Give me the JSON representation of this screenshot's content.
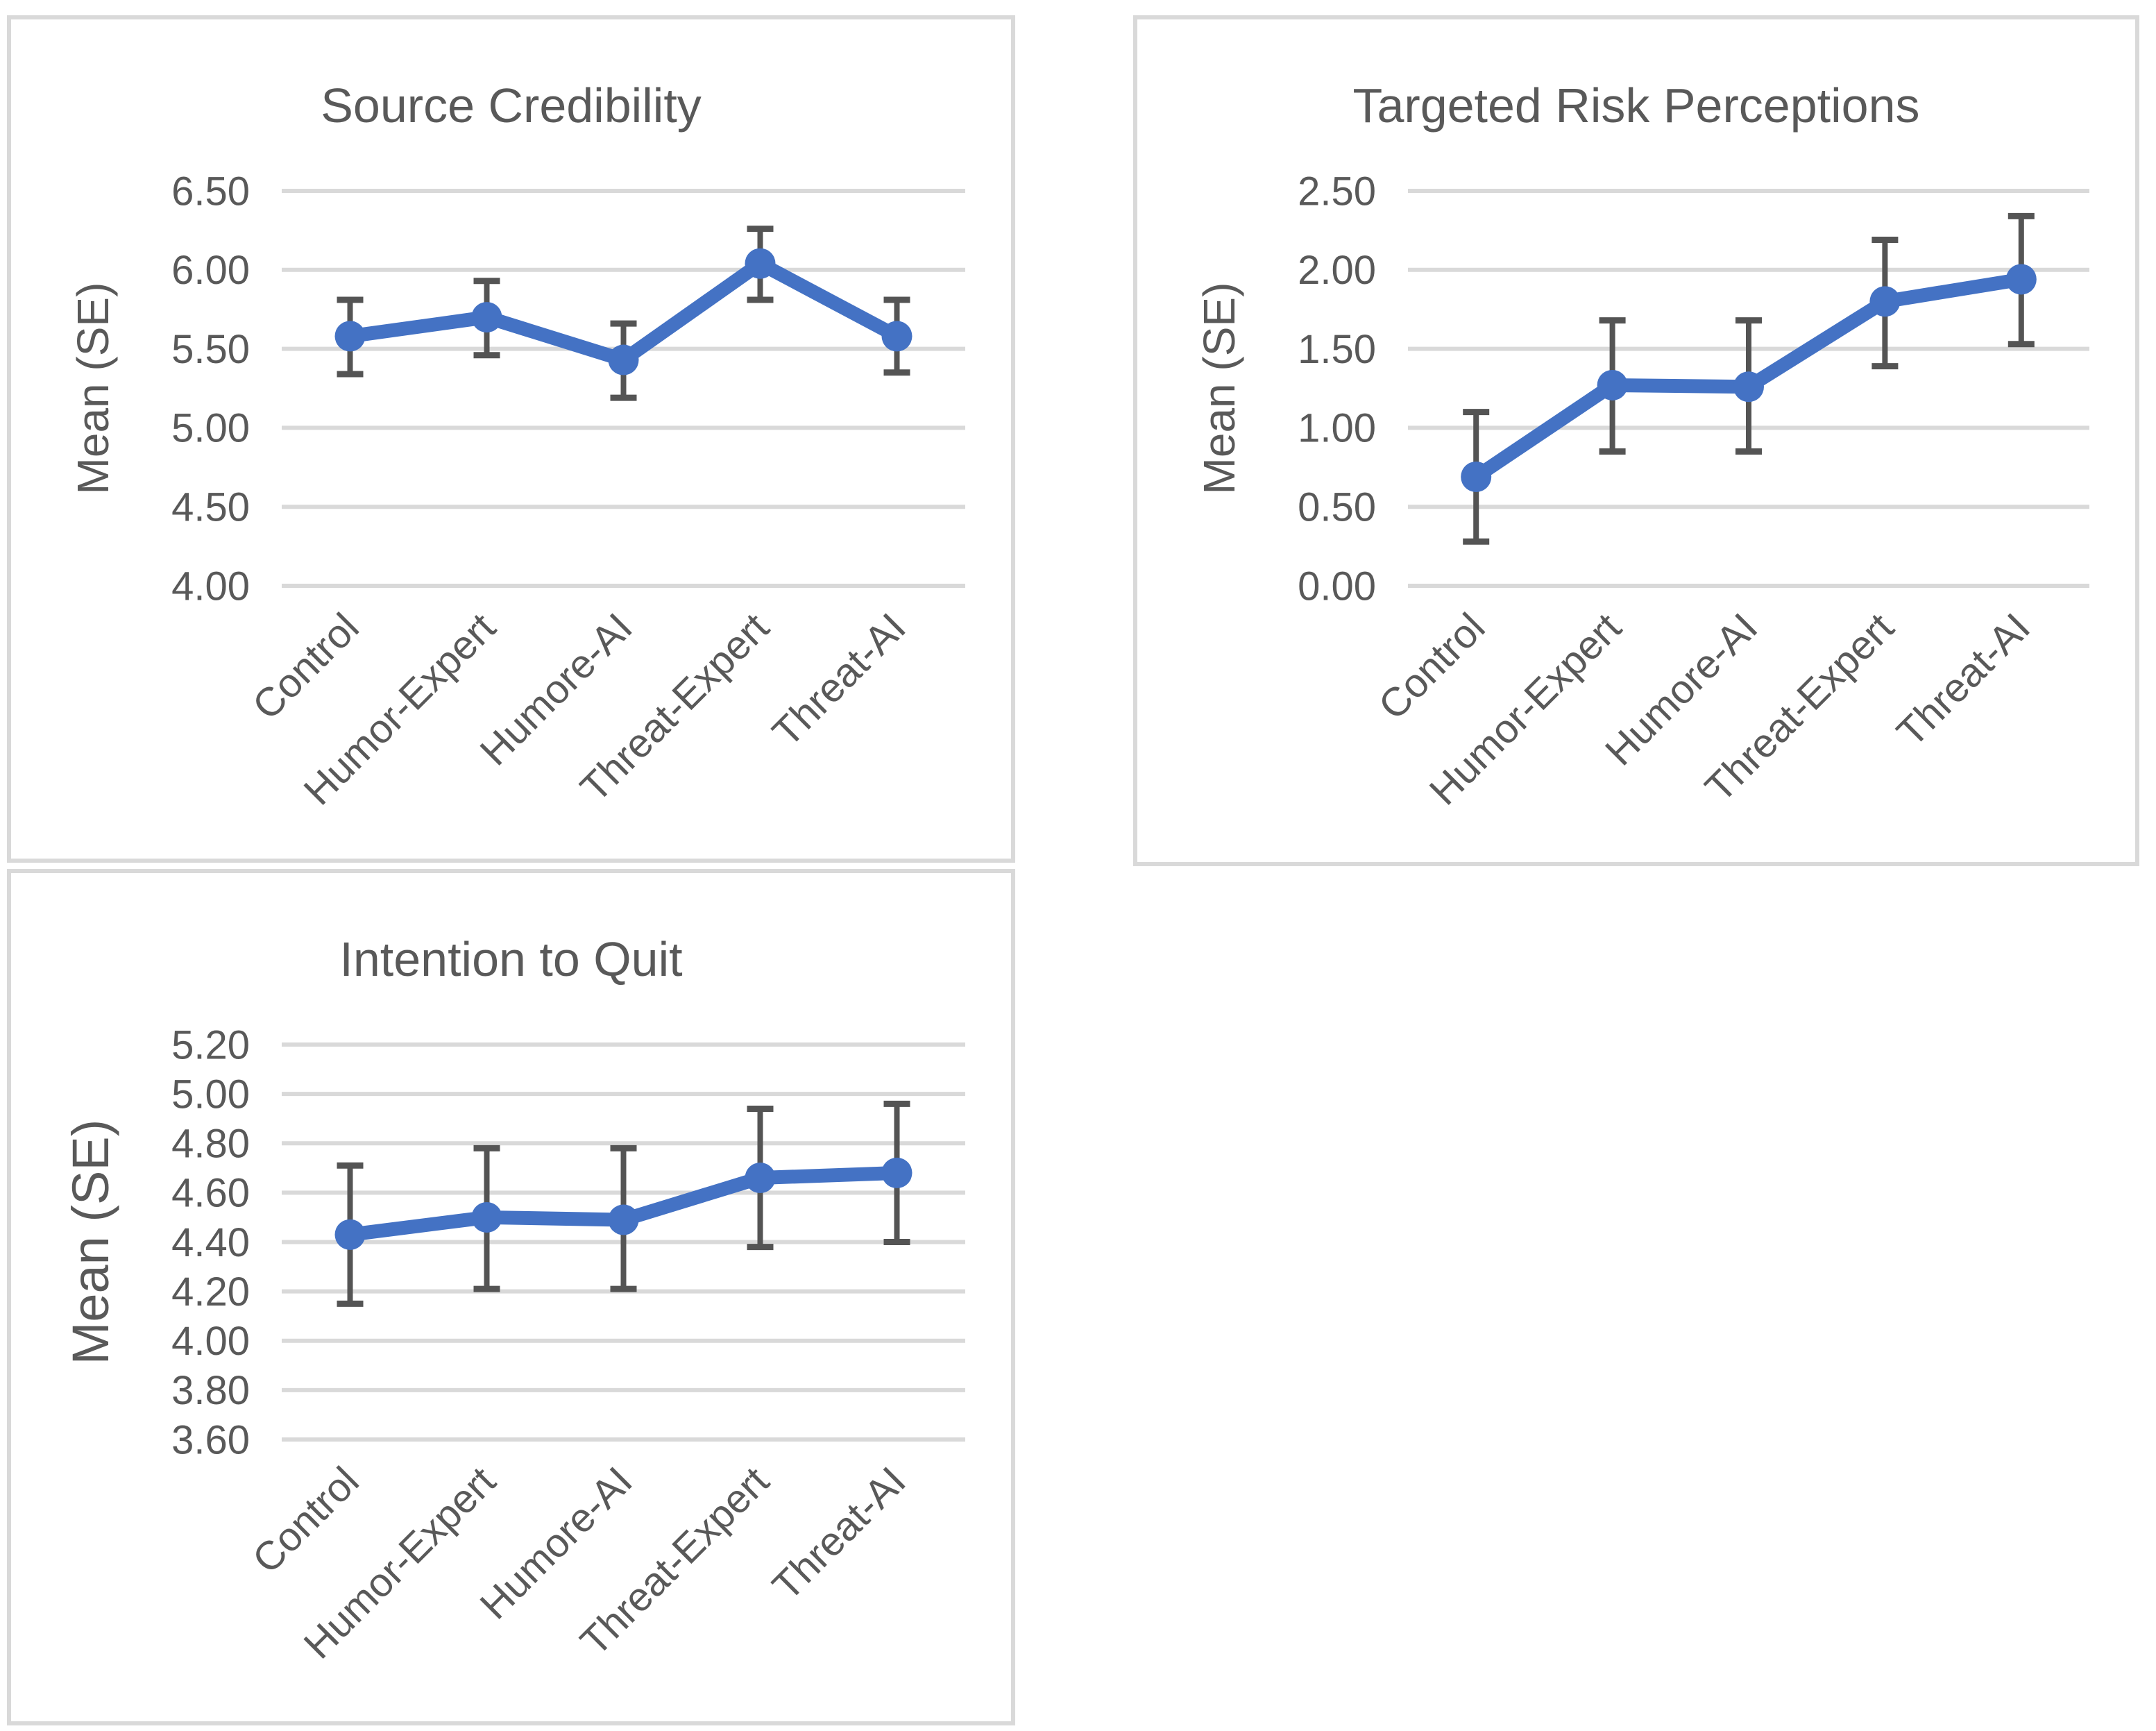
{
  "colors": {
    "series": "#4472C4",
    "error_bar": "#545454",
    "gridline": "#D9D9D9",
    "text": "#595959",
    "box_border": "#D9D9D9",
    "background": "#FFFFFF"
  },
  "chart_data": [
    {
      "type": "line",
      "title": "Source Credibility",
      "xlabel": "",
      "ylabel": "Mean (SE)",
      "categories": [
        "Control",
        "Humor-Expert",
        "Humore-AI",
        "Threat-Expert",
        "Threat-AI"
      ],
      "series": [
        {
          "name": "Mean (SE)",
          "values": [
            5.58,
            5.7,
            5.43,
            6.04,
            5.58
          ]
        }
      ],
      "error_upper": [
        5.81,
        5.93,
        5.66,
        6.26,
        5.81
      ],
      "error_lower": [
        5.34,
        5.46,
        5.19,
        5.81,
        5.35
      ],
      "ylim": [
        4.0,
        6.5
      ],
      "ytick_step": 0.5,
      "ytick_labels": [
        "6.50",
        "6.00",
        "5.50",
        "5.00",
        "4.50",
        "4.00"
      ],
      "grid": true,
      "legend": false,
      "marker": "circle"
    },
    {
      "type": "line",
      "title": "Targeted Risk Perceptions",
      "xlabel": "",
      "ylabel": "Mean (SE)",
      "categories": [
        "Control",
        "Humor-Expert",
        "Humore-AI",
        "Threat-Expert",
        "Threat-AI"
      ],
      "series": [
        {
          "name": "Mean (SE)",
          "values": [
            0.69,
            1.27,
            1.26,
            1.8,
            1.94
          ]
        }
      ],
      "error_upper": [
        1.1,
        1.68,
        1.68,
        2.19,
        2.34
      ],
      "error_lower": [
        0.28,
        0.85,
        0.85,
        1.39,
        1.53
      ],
      "ylim": [
        0.0,
        2.5
      ],
      "ytick_step": 0.5,
      "ytick_labels": [
        "2.50",
        "2.00",
        "1.50",
        "1.00",
        "0.50",
        "0.00"
      ],
      "grid": true,
      "legend": false,
      "marker": "circle"
    },
    {
      "type": "line",
      "title": "Intention to Quit",
      "xlabel": "",
      "ylabel": "Mean (SE)",
      "categories": [
        "Control",
        "Humor-Expert",
        "Humore-AI",
        "Threat-Expert",
        "Threat-AI"
      ],
      "series": [
        {
          "name": "Mean (SE)",
          "values": [
            4.43,
            4.5,
            4.49,
            4.66,
            4.68
          ]
        }
      ],
      "error_upper": [
        4.71,
        4.78,
        4.78,
        4.94,
        4.96
      ],
      "error_lower": [
        4.15,
        4.21,
        4.21,
        4.38,
        4.4
      ],
      "ylim": [
        3.6,
        5.2
      ],
      "ytick_step": 0.2,
      "ytick_labels": [
        "5.20",
        "5.00",
        "4.80",
        "4.60",
        "4.40",
        "4.20",
        "4.00",
        "3.80",
        "3.60"
      ],
      "grid": true,
      "legend": false,
      "marker": "circle"
    }
  ]
}
